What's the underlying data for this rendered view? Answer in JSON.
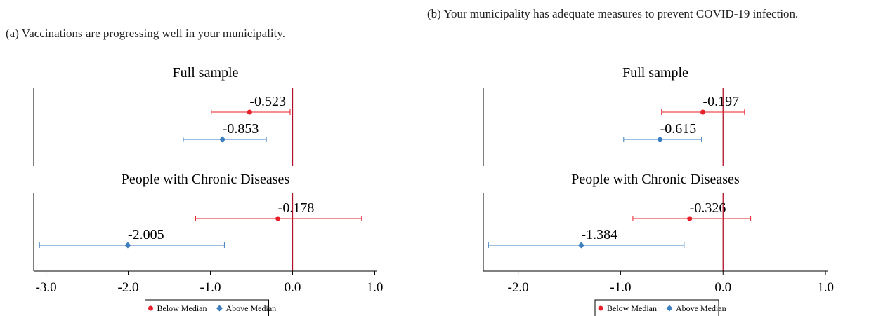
{
  "chart_data": [
    {
      "type": "coefplot",
      "title": "(a) Vaccinations are progressing well in your municipality.",
      "xlim": [
        -3.15,
        1.03
      ],
      "xticks": [
        {
          "value": -3,
          "label": "-3.0"
        },
        {
          "value": -2,
          "label": "-2.0"
        },
        {
          "value": -1,
          "label": "-1.0"
        },
        {
          "value": 0,
          "label": "0.0"
        },
        {
          "value": 1,
          "label": "1.0"
        }
      ],
      "ref_x": 0,
      "series": [
        {
          "name": "Below Median",
          "color": "#e8202a",
          "marker": "circle"
        },
        {
          "name": "Above Median",
          "color": "#3d7ebf",
          "marker": "diamond"
        }
      ],
      "panels": [
        {
          "title": "Full sample",
          "values": [
            -0.523,
            -0.853
          ],
          "lower": [
            -0.99,
            -1.33
          ],
          "upper": [
            -0.03,
            -0.32
          ]
        },
        {
          "title": "People with Chronic Diseases",
          "values": [
            -0.178,
            -2.005
          ],
          "lower": [
            -1.18,
            -3.08
          ],
          "upper": [
            0.84,
            -0.83
          ]
        }
      ]
    },
    {
      "type": "coefplot",
      "title": "(b) Your municipality has adequate measures to prevent COVID-19 infection.",
      "xlim": [
        -2.34,
        1.02
      ],
      "xticks": [
        {
          "value": -2,
          "label": "-2.0"
        },
        {
          "value": -1,
          "label": "-1.0"
        },
        {
          "value": 0,
          "label": "0.0"
        },
        {
          "value": 1,
          "label": "1.0"
        }
      ],
      "ref_x": 0,
      "series": [
        {
          "name": "Below Median",
          "color": "#e8202a",
          "marker": "circle"
        },
        {
          "name": "Above Median",
          "color": "#3d7ebf",
          "marker": "diamond"
        }
      ],
      "panels": [
        {
          "title": "Full sample",
          "values": [
            -0.197,
            -0.615
          ],
          "lower": [
            -0.6,
            -0.97
          ],
          "upper": [
            0.21,
            -0.21
          ]
        },
        {
          "title": "People with Chronic Diseases",
          "values": [
            -0.326,
            -1.384
          ],
          "lower": [
            -0.88,
            -2.29
          ],
          "upper": [
            0.27,
            -0.38
          ]
        }
      ]
    }
  ]
}
